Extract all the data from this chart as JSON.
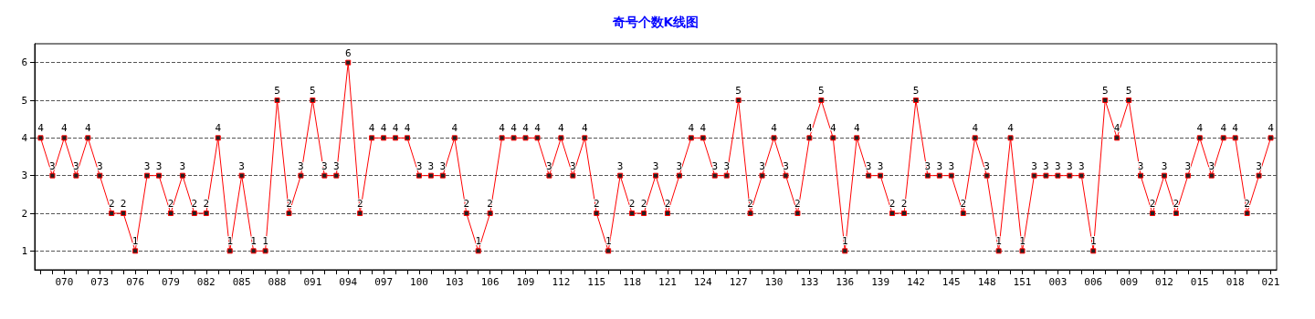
{
  "chart_data": {
    "type": "line",
    "title": "奇号个数K线图",
    "categories": [
      null,
      null,
      "070",
      null,
      null,
      "073",
      null,
      null,
      "076",
      null,
      null,
      "079",
      null,
      null,
      "082",
      null,
      null,
      "085",
      null,
      null,
      "088",
      null,
      null,
      "091",
      null,
      null,
      "094",
      null,
      null,
      "097",
      null,
      null,
      "100",
      null,
      null,
      "103",
      null,
      null,
      "106",
      null,
      null,
      "109",
      null,
      null,
      "112",
      null,
      null,
      "115",
      null,
      null,
      "118",
      null,
      null,
      "121",
      null,
      null,
      "124",
      null,
      null,
      "127",
      null,
      null,
      "130",
      null,
      null,
      "133",
      null,
      null,
      "136",
      null,
      null,
      "139",
      null,
      null,
      "142",
      null,
      null,
      "145",
      null,
      null,
      "148",
      null,
      null,
      "151",
      null,
      null,
      "003",
      null,
      null,
      "006",
      null,
      null,
      "009",
      null,
      null,
      "012",
      null,
      null,
      "015",
      null,
      null,
      "018",
      null,
      null,
      "021"
    ],
    "series": [
      {
        "color": "#ff0000",
        "values": [
          4,
          3,
          4,
          3,
          4,
          3,
          2,
          2,
          1,
          3,
          3,
          2,
          3,
          2,
          2,
          4,
          1,
          3,
          1,
          1,
          5,
          2,
          3,
          5,
          3,
          3,
          6,
          2,
          4,
          4,
          4,
          4,
          3,
          3,
          3,
          4,
          2,
          1,
          2,
          4,
          4,
          4,
          4,
          3,
          4,
          3,
          4,
          2,
          1,
          3,
          2,
          2,
          3,
          2,
          3,
          4,
          4,
          3,
          3,
          5,
          2,
          3,
          4,
          3,
          2,
          4,
          5,
          4,
          1,
          4,
          3,
          3,
          2,
          2,
          5,
          3,
          3,
          3,
          2,
          4,
          3,
          1,
          4,
          1,
          3,
          3,
          3,
          3,
          3,
          1,
          5,
          4,
          5,
          3,
          2,
          3,
          2,
          3,
          4,
          3,
          4,
          4,
          2,
          3,
          4
        ]
      }
    ],
    "ylim": [
      0.5,
      6.5
    ],
    "yticks": [
      1,
      2,
      3,
      4,
      5,
      6
    ],
    "grid": "y",
    "data_labels": true,
    "marker": "square",
    "line_style": "solid"
  }
}
